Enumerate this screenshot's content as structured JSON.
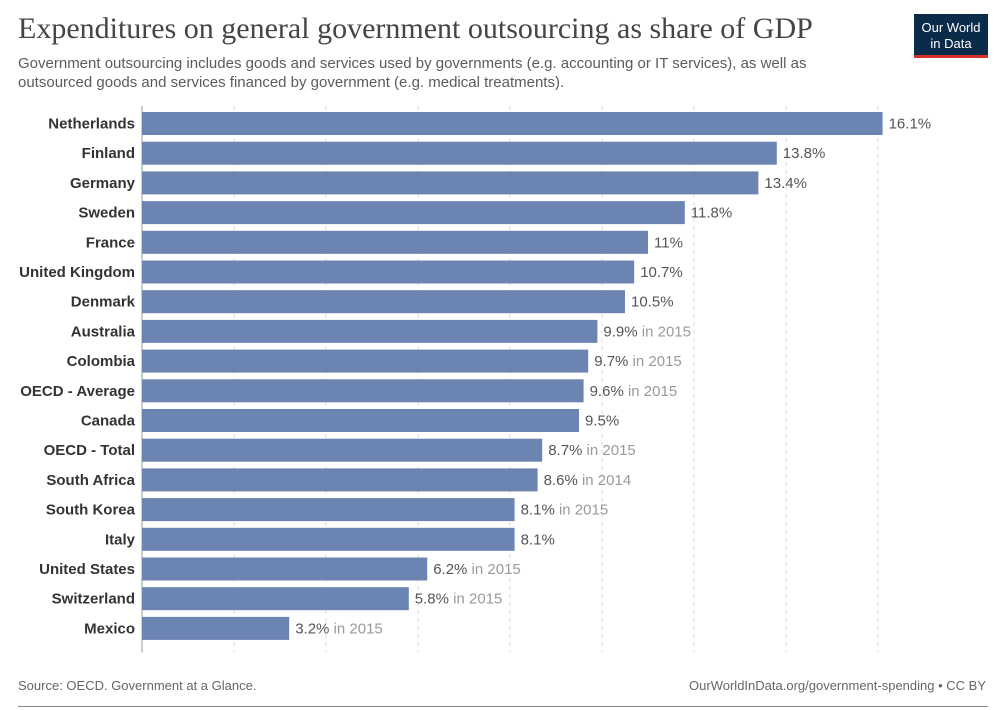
{
  "header": {
    "title": "Expenditures on general government outsourcing as share of GDP",
    "subtitle": "Government outsourcing includes goods and services used by governments (e.g. accounting or IT services), as well as outsourced goods and services financed by government (e.g. medical treatments).",
    "logo_line1": "Our World",
    "logo_line2": "in Data"
  },
  "footer": {
    "source": "Source: OECD. Government at a Glance.",
    "credit": "OurWorldInData.org/government-spending • CC BY"
  },
  "colors": {
    "bar": "#6b84b1",
    "value_label": "#555555",
    "year_note": "#9a9a9a",
    "category_label": "#333333",
    "grid": "#dddddd"
  },
  "chart_data": {
    "type": "bar",
    "orientation": "horizontal",
    "title": "Expenditures on general government outsourcing as share of GDP",
    "xlim": [
      0,
      16.1
    ],
    "grid": true,
    "unit": "%",
    "categories": [
      "Netherlands",
      "Finland",
      "Germany",
      "Sweden",
      "France",
      "United Kingdom",
      "Denmark",
      "Australia",
      "Colombia",
      "OECD - Average",
      "Canada",
      "OECD - Total",
      "South Africa",
      "South Korea",
      "Italy",
      "United States",
      "Switzerland",
      "Mexico"
    ],
    "values": [
      16.1,
      13.8,
      13.4,
      11.8,
      11,
      10.7,
      10.5,
      9.9,
      9.7,
      9.6,
      9.5,
      8.7,
      8.6,
      8.1,
      8.1,
      6.2,
      5.8,
      3.2
    ],
    "value_labels": [
      "16.1%",
      "13.8%",
      "13.4%",
      "11.8%",
      "11%",
      "10.7%",
      "10.5%",
      "9.9%",
      "9.7%",
      "9.6%",
      "9.5%",
      "8.7%",
      "8.6%",
      "8.1%",
      "8.1%",
      "6.2%",
      "5.8%",
      "3.2%"
    ],
    "year_notes": [
      "",
      "",
      "",
      "",
      "",
      "",
      "",
      "in 2015",
      "in 2015",
      "in 2015",
      "",
      "in 2015",
      "in 2014",
      "in 2015",
      "",
      "in 2015",
      "in 2015",
      "in 2015"
    ],
    "gridlines": [
      0,
      2,
      4,
      6,
      8,
      10,
      12,
      14,
      16
    ]
  }
}
